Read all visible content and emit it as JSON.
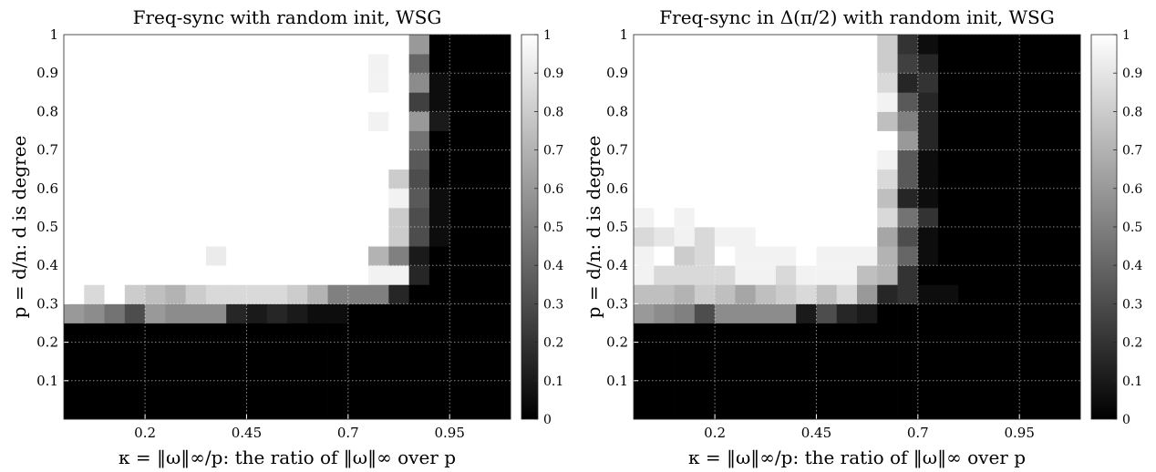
{
  "chart_data": [
    {
      "type": "heatmap",
      "title": "Freq-sync with random init, WSG",
      "xlabel": "κ = ‖ω‖∞/p: the ratio of ‖ω‖∞ over p",
      "ylabel": "p = d/n: d is degree",
      "xticks": [
        {
          "value": 0.2,
          "label": "0.2"
        },
        {
          "value": 0.45,
          "label": "0.45"
        },
        {
          "value": 0.7,
          "label": "0.7"
        },
        {
          "value": 0.95,
          "label": "0.95"
        }
      ],
      "yticks": [
        {
          "value": 0.1,
          "label": "0.1"
        },
        {
          "value": 0.2,
          "label": "0.2"
        },
        {
          "value": 0.3,
          "label": "0.3"
        },
        {
          "value": 0.4,
          "label": "0.4"
        },
        {
          "value": 0.5,
          "label": "0.5"
        },
        {
          "value": 0.6,
          "label": "0.6"
        },
        {
          "value": 0.7,
          "label": "0.7"
        },
        {
          "value": 0.8,
          "label": "0.8"
        },
        {
          "value": 0.9,
          "label": "0.9"
        },
        {
          "value": 1.0,
          "label": "1"
        }
      ],
      "x_cells": {
        "start": 0.025,
        "step": 0.05,
        "count": 22
      },
      "y_cells": {
        "start": 0.025,
        "step": 0.05,
        "count": 20
      },
      "colormap": "gray",
      "clim": [
        0,
        1
      ],
      "colorbar_ticks": [
        "0",
        "0.1",
        "0.2",
        "0.3",
        "0.4",
        "0.5",
        "0.6",
        "0.7",
        "0.8",
        "0.9",
        "1"
      ],
      "grid": true,
      "cell_values": [
        [
          0,
          0,
          0,
          0,
          0,
          0,
          0,
          0,
          0,
          0,
          0,
          0,
          0,
          0,
          0,
          0,
          0,
          0,
          0,
          0,
          0,
          0
        ],
        [
          0,
          0,
          0,
          0,
          0,
          0,
          0,
          0,
          0,
          0,
          0,
          0,
          0,
          0,
          0,
          0,
          0,
          0,
          0,
          0,
          0,
          0
        ],
        [
          0,
          0,
          0,
          0,
          0,
          0,
          0,
          0,
          0,
          0,
          0,
          0,
          0,
          0,
          0,
          0,
          0,
          0,
          0,
          0,
          0,
          0
        ],
        [
          0,
          0,
          0,
          0,
          0,
          0,
          0,
          0,
          0,
          0,
          0,
          0,
          0,
          0,
          0,
          0,
          0,
          0,
          0,
          0,
          0,
          0
        ],
        [
          0,
          0,
          0,
          0,
          0,
          0,
          0,
          0,
          0,
          0,
          0,
          0,
          0,
          0,
          0,
          0,
          0,
          0,
          0,
          0,
          0,
          0
        ],
        [
          0.6,
          0.55,
          0.45,
          0.3,
          0.6,
          0.55,
          0.55,
          0.55,
          0.15,
          0.1,
          0.15,
          0.1,
          0.05,
          0.05,
          0,
          0,
          0,
          0,
          0,
          0,
          0,
          0
        ],
        [
          1,
          0.85,
          1,
          0.8,
          0.75,
          0.7,
          0.8,
          0.85,
          0.85,
          0.85,
          0.85,
          0.8,
          0.7,
          0.5,
          0.5,
          0.5,
          0.15,
          0,
          0,
          0,
          0,
          0
        ],
        [
          1,
          1,
          1,
          1,
          1,
          1,
          1,
          1,
          1,
          1,
          1,
          1,
          1,
          1,
          1,
          0.95,
          0.95,
          0.15,
          0,
          0,
          0,
          0
        ],
        [
          1,
          1,
          1,
          1,
          1,
          1,
          1,
          0.92,
          1,
          1,
          1,
          1,
          1,
          1,
          1,
          0.7,
          0.5,
          0.1,
          0,
          0,
          0,
          0
        ],
        [
          1,
          1,
          1,
          1,
          1,
          1,
          1,
          1,
          1,
          1,
          1,
          1,
          1,
          1,
          1,
          1,
          0.8,
          0.3,
          0.05,
          0,
          0,
          0
        ],
        [
          1,
          1,
          1,
          1,
          1,
          1,
          1,
          1,
          1,
          1,
          1,
          1,
          1,
          1,
          1,
          1,
          0.8,
          0.3,
          0.05,
          0,
          0,
          0
        ],
        [
          1,
          1,
          1,
          1,
          1,
          1,
          1,
          1,
          1,
          1,
          1,
          1,
          1,
          1,
          1,
          1,
          0.95,
          0.35,
          0.05,
          0,
          0,
          0
        ],
        [
          1,
          1,
          1,
          1,
          1,
          1,
          1,
          1,
          1,
          1,
          1,
          1,
          1,
          1,
          1,
          1,
          0.8,
          0.3,
          0,
          0,
          0,
          0
        ],
        [
          1,
          1,
          1,
          1,
          1,
          1,
          1,
          1,
          1,
          1,
          1,
          1,
          1,
          1,
          1,
          1,
          1,
          0.35,
          0,
          0,
          0,
          0
        ],
        [
          1,
          1,
          1,
          1,
          1,
          1,
          1,
          1,
          1,
          1,
          1,
          1,
          1,
          1,
          1,
          1,
          1,
          0.45,
          0,
          0,
          0,
          0
        ],
        [
          1,
          1,
          1,
          1,
          1,
          1,
          1,
          1,
          1,
          1,
          1,
          1,
          1,
          1,
          1,
          0.95,
          1,
          0.6,
          0.1,
          0,
          0,
          0
        ],
        [
          1,
          1,
          1,
          1,
          1,
          1,
          1,
          1,
          1,
          1,
          1,
          1,
          1,
          1,
          1,
          1,
          1,
          0.25,
          0.05,
          0,
          0,
          0
        ],
        [
          1,
          1,
          1,
          1,
          1,
          1,
          1,
          1,
          1,
          1,
          1,
          1,
          1,
          1,
          1,
          0.95,
          1,
          0.55,
          0.05,
          0,
          0,
          0
        ],
        [
          1,
          1,
          1,
          1,
          1,
          1,
          1,
          1,
          1,
          1,
          1,
          1,
          1,
          1,
          1,
          0.95,
          1,
          0.4,
          0,
          0,
          0,
          0
        ],
        [
          1,
          1,
          1,
          1,
          1,
          1,
          1,
          1,
          1,
          1,
          1,
          1,
          1,
          1,
          1,
          1,
          1,
          0.6,
          0,
          0,
          0,
          0
        ]
      ]
    },
    {
      "type": "heatmap",
      "title": "Freq-sync in Δ(π/2) with random init, WSG",
      "xlabel": "κ = ‖ω‖∞/p: the ratio of ‖ω‖∞ over p",
      "ylabel": "p = d/n: d is degree",
      "xticks": [
        {
          "value": 0.2,
          "label": "0.2"
        },
        {
          "value": 0.45,
          "label": "0.45"
        },
        {
          "value": 0.7,
          "label": "0.7"
        },
        {
          "value": 0.95,
          "label": "0.95"
        }
      ],
      "yticks": [
        {
          "value": 0.1,
          "label": "0.1"
        },
        {
          "value": 0.2,
          "label": "0.2"
        },
        {
          "value": 0.3,
          "label": "0.3"
        },
        {
          "value": 0.4,
          "label": "0.4"
        },
        {
          "value": 0.5,
          "label": "0.5"
        },
        {
          "value": 0.6,
          "label": "0.6"
        },
        {
          "value": 0.7,
          "label": "0.7"
        },
        {
          "value": 0.8,
          "label": "0.8"
        },
        {
          "value": 0.9,
          "label": "0.9"
        },
        {
          "value": 1.0,
          "label": "1"
        }
      ],
      "x_cells": {
        "start": 0.025,
        "step": 0.05,
        "count": 22
      },
      "y_cells": {
        "start": 0.025,
        "step": 0.05,
        "count": 20
      },
      "colormap": "gray",
      "clim": [
        0,
        1
      ],
      "colorbar_ticks": [
        "0",
        "0.1",
        "0.2",
        "0.3",
        "0.4",
        "0.5",
        "0.6",
        "0.7",
        "0.8",
        "0.9",
        "1"
      ],
      "grid": true,
      "cell_values": [
        [
          0,
          0,
          0,
          0,
          0,
          0,
          0,
          0,
          0,
          0,
          0,
          0,
          0,
          0,
          0,
          0,
          0,
          0,
          0,
          0,
          0,
          0
        ],
        [
          0,
          0,
          0,
          0,
          0,
          0,
          0,
          0,
          0,
          0,
          0,
          0,
          0,
          0,
          0,
          0,
          0,
          0,
          0,
          0,
          0,
          0
        ],
        [
          0,
          0,
          0,
          0,
          0,
          0,
          0,
          0,
          0,
          0,
          0,
          0,
          0,
          0,
          0,
          0,
          0,
          0,
          0,
          0,
          0,
          0
        ],
        [
          0,
          0,
          0,
          0,
          0,
          0,
          0,
          0,
          0,
          0,
          0,
          0,
          0,
          0,
          0,
          0,
          0,
          0,
          0,
          0,
          0,
          0
        ],
        [
          0,
          0,
          0,
          0,
          0,
          0,
          0,
          0,
          0,
          0,
          0,
          0,
          0,
          0,
          0,
          0,
          0,
          0,
          0,
          0,
          0,
          0
        ],
        [
          0.6,
          0.55,
          0.5,
          0.3,
          0.55,
          0.55,
          0.55,
          0.55,
          0.1,
          0.3,
          0.15,
          0.1,
          0,
          0,
          0,
          0,
          0,
          0,
          0,
          0,
          0,
          0
        ],
        [
          0.75,
          0.75,
          0.7,
          0.8,
          0.75,
          0.65,
          0.75,
          0.8,
          0.85,
          0.75,
          0.85,
          0.6,
          0.15,
          0.2,
          0.05,
          0.05,
          0,
          0,
          0,
          0,
          0,
          0
        ],
        [
          0.95,
          0.85,
          0.85,
          0.85,
          0.85,
          0.95,
          0.95,
          0.85,
          0.95,
          0.95,
          0.95,
          0.75,
          0.7,
          0.2,
          0,
          0,
          0,
          0,
          0,
          0,
          0,
          0
        ],
        [
          0.95,
          1,
          0.8,
          0.85,
          1,
          0.95,
          0.95,
          0.95,
          1,
          0.95,
          0.95,
          0.95,
          0.7,
          0.4,
          0.05,
          0,
          0,
          0,
          0,
          0,
          0,
          0
        ],
        [
          0.85,
          0.9,
          0.95,
          0.85,
          0.95,
          0.95,
          1,
          1,
          1,
          1,
          1,
          1,
          0.65,
          0.3,
          0.05,
          0,
          0,
          0,
          0,
          0,
          0,
          0
        ],
        [
          0.95,
          1,
          0.95,
          1,
          1,
          1,
          1,
          1,
          1,
          1,
          1,
          1,
          0.85,
          0.45,
          0.2,
          0,
          0,
          0,
          0,
          0,
          0,
          0
        ],
        [
          1,
          1,
          1,
          1,
          1,
          1,
          1,
          1,
          1,
          1,
          1,
          1,
          0.75,
          0.15,
          0.05,
          0,
          0,
          0,
          0,
          0,
          0,
          0
        ],
        [
          1,
          1,
          1,
          1,
          1,
          1,
          1,
          1,
          1,
          1,
          1,
          1,
          0.85,
          0.35,
          0.05,
          0,
          0,
          0,
          0,
          0,
          0,
          0
        ],
        [
          1,
          1,
          1,
          1,
          1,
          1,
          1,
          1,
          1,
          1,
          1,
          1,
          0.95,
          0.35,
          0.05,
          0,
          0,
          0,
          0,
          0,
          0,
          0
        ],
        [
          1,
          1,
          1,
          1,
          1,
          1,
          1,
          1,
          1,
          1,
          1,
          1,
          1,
          0.6,
          0.15,
          0,
          0,
          0,
          0,
          0,
          0,
          0
        ],
        [
          1,
          1,
          1,
          1,
          1,
          1,
          1,
          1,
          1,
          1,
          1,
          1,
          0.75,
          0.5,
          0.15,
          0,
          0,
          0,
          0,
          0,
          0,
          0
        ],
        [
          1,
          1,
          1,
          1,
          1,
          1,
          1,
          1,
          1,
          1,
          1,
          1,
          0.95,
          0.35,
          0.15,
          0,
          0,
          0,
          0,
          0,
          0,
          0
        ],
        [
          1,
          1,
          1,
          1,
          1,
          1,
          1,
          1,
          1,
          1,
          1,
          1,
          0.85,
          0.15,
          0.2,
          0,
          0,
          0,
          0,
          0,
          0,
          0
        ],
        [
          1,
          1,
          1,
          1,
          1,
          1,
          1,
          1,
          1,
          1,
          1,
          1,
          0.8,
          0.25,
          0.15,
          0,
          0,
          0,
          0,
          0,
          0,
          0
        ],
        [
          1,
          1,
          1,
          1,
          1,
          1,
          1,
          1,
          1,
          1,
          1,
          1,
          0.8,
          0.2,
          0.05,
          0,
          0,
          0,
          0,
          0,
          0,
          0
        ]
      ]
    }
  ]
}
